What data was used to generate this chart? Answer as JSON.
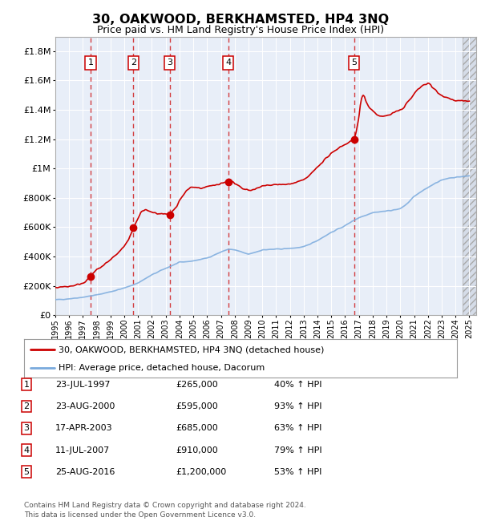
{
  "title": "30, OAKWOOD, BERKHAMSTED, HP4 3NQ",
  "subtitle": "Price paid vs. HM Land Registry's House Price Index (HPI)",
  "ylim": [
    0,
    1900000
  ],
  "yticks": [
    0,
    200000,
    400000,
    600000,
    800000,
    1000000,
    1200000,
    1400000,
    1600000,
    1800000
  ],
  "xlim_start": 1995.0,
  "xlim_end": 2025.5,
  "sales": [
    {
      "label": "1",
      "year": 1997.56,
      "price": 265000
    },
    {
      "label": "2",
      "year": 2000.65,
      "price": 595000
    },
    {
      "label": "3",
      "year": 2003.3,
      "price": 685000
    },
    {
      "label": "4",
      "year": 2007.53,
      "price": 910000
    },
    {
      "label": "5",
      "year": 2016.65,
      "price": 1200000
    }
  ],
  "table_rows": [
    {
      "num": "1",
      "date": "23-JUL-1997",
      "price": "£265,000",
      "pct": "40% ↑ HPI"
    },
    {
      "num": "2",
      "date": "23-AUG-2000",
      "price": "£595,000",
      "pct": "93% ↑ HPI"
    },
    {
      "num": "3",
      "date": "17-APR-2003",
      "price": "£685,000",
      "pct": "63% ↑ HPI"
    },
    {
      "num": "4",
      "date": "11-JUL-2007",
      "price": "£910,000",
      "pct": "79% ↑ HPI"
    },
    {
      "num": "5",
      "date": "25-AUG-2016",
      "price": "£1,200,000",
      "pct": "53% ↑ HPI"
    }
  ],
  "legend_red_label": "30, OAKWOOD, BERKHAMSTED, HP4 3NQ (detached house)",
  "legend_blue_label": "HPI: Average price, detached house, Dacorum",
  "footer": "Contains HM Land Registry data © Crown copyright and database right 2024.\nThis data is licensed under the Open Government Licence v3.0.",
  "bg_color": "#e8eef8",
  "grid_color": "#ffffff",
  "red_color": "#cc0000",
  "blue_color": "#7aaadd",
  "hatch_color": "#d0d8e8"
}
